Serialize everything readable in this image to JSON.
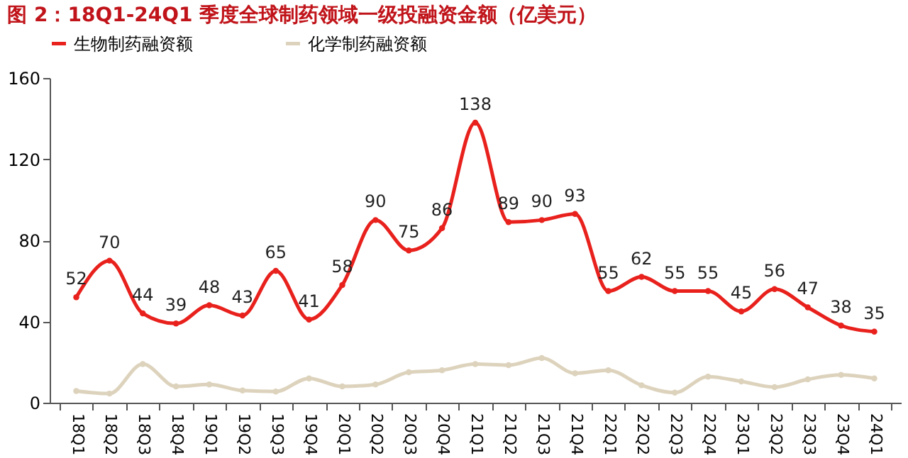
{
  "chart_data": {
    "type": "line",
    "title": "图 2：18Q1-24Q1 季度全球制药领域一级投融资金额（亿美元）",
    "categories": [
      "18Q1",
      "18Q2",
      "18Q3",
      "18Q4",
      "19Q1",
      "19Q2",
      "19Q3",
      "19Q4",
      "20Q1",
      "20Q2",
      "20Q3",
      "20Q4",
      "21Q1",
      "21Q2",
      "21Q3",
      "21Q4",
      "22Q1",
      "22Q2",
      "22Q3",
      "22Q4",
      "23Q1",
      "23Q2",
      "23Q3",
      "23Q4",
      "24Q1"
    ],
    "series": [
      {
        "name": "生物制药融资额",
        "color": "#e8211d",
        "values": [
          52,
          70,
          44,
          39,
          48,
          43,
          65,
          41,
          58,
          90,
          75,
          86,
          138,
          89,
          90,
          93,
          55,
          62,
          55,
          55,
          45,
          56,
          47,
          38,
          35
        ],
        "data_labels": true
      },
      {
        "name": "化学制药融资额",
        "color": "#ddd3bd",
        "values": [
          5.8,
          4.5,
          19,
          8,
          9,
          6,
          5.5,
          12,
          8,
          9,
          15,
          16,
          19,
          18.5,
          22,
          14.5,
          16,
          8.6,
          5,
          12.8,
          10.5,
          7.7,
          11.5,
          13.7,
          12
        ]
      }
    ],
    "ylim": [
      0,
      160
    ],
    "yticks": [
      0,
      40,
      80,
      120,
      160
    ],
    "grid": false,
    "legend": "top",
    "marker": "circle",
    "line_style": "solid"
  }
}
